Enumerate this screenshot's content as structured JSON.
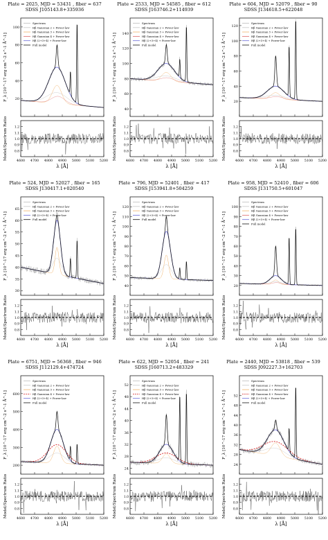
{
  "labels": {
    "xlabel": "λ [Å]",
    "ylabel_flux": "F_λ [10^-17 erg cm^-2 s^-1 Å^-1]",
    "ylabel_ratio": "Model/Spectrum Ratio"
  },
  "legend_sets": {
    "A": [
      "Spectrum",
      "Hβ Gaussian 2 + Power-law",
      "Hβ Gaussian 3 + Power-law",
      "Hβ Gaussian 4 + Power-law",
      "Hβ (2+3+4) + Power-law",
      "Full model"
    ],
    "B": [
      "Spectrum",
      "Hβ Gaussian 2 + Power-law",
      "Hβ Gaussian 3 + Power-law",
      "Hβ (2+3+4) + Power-law",
      "Full model"
    ],
    "C": [
      "Spectrum",
      "Hβ Gaussian 2 + Power-law",
      "Hβ Gaussian 3 + Power-law",
      "Hβ Gaussian 4 + Power-law",
      "Hβ (2+3+4) + Power-law",
      "Full model"
    ]
  },
  "colors": {
    "spectrum": "#bdbdbd",
    "model": "#111111",
    "gauss2": "#c8c8c8",
    "gauss3": "#f2b36b",
    "gauss4": "#e06a6a",
    "broad": "#6a6ad8",
    "red_dashed": "#d62020",
    "ratio_line": "#000000"
  },
  "chart_data": [
    {
      "type": "line",
      "title": "Plate = 2025, MJD = 53431 , fiber = 637",
      "subtitle": "SDSS J105143.8+335936",
      "legend": "A",
      "xlim": [
        4600,
        5200
      ],
      "xticks": [
        4600,
        4700,
        4800,
        4900,
        5000,
        5100,
        5200
      ],
      "ylim": [
        0,
        110
      ],
      "yticks": [
        20,
        40,
        60,
        80,
        100
      ],
      "peak": 80,
      "oiii": [
        105,
        40
      ],
      "cont": [
        18,
        10
      ],
      "broad": [
        55,
        60
      ],
      "rlim": [
        0.7,
        1.3
      ],
      "rticks": [
        0.8,
        0.9,
        1.0,
        1.1,
        1.2
      ]
    },
    {
      "type": "line",
      "title": "Plate = 2533, MJD = 54585 , fiber = 612",
      "subtitle": "SDSS J163746.2+114939",
      "legend": "A",
      "xlim": [
        4600,
        5200
      ],
      "xticks": [
        4600,
        4700,
        4800,
        4900,
        5000,
        5100,
        5200
      ],
      "ylim": [
        30,
        160
      ],
      "yticks": [
        40,
        60,
        80,
        100,
        120,
        140
      ],
      "peak": 125,
      "oiii": [
        150,
        100
      ],
      "cont": [
        80,
        72
      ],
      "broad": [
        100,
        60
      ],
      "rlim": [
        0.7,
        1.3
      ],
      "rticks": [
        0.8,
        0.9,
        1.0,
        1.1,
        1.2
      ]
    },
    {
      "type": "line",
      "title": "Plate = 604, MJD = 52079 , fiber = 90",
      "subtitle": "SDSS J134618.5+622048",
      "legend": "A",
      "xlim": [
        4600,
        5200
      ],
      "xticks": [
        4600,
        4700,
        4800,
        4900,
        5000,
        5100,
        5200
      ],
      "ylim": [
        0,
        130
      ],
      "yticks": [
        20,
        40,
        60,
        80,
        100,
        120
      ],
      "peak": 80,
      "oiii": [
        130,
        90
      ],
      "cont": [
        25,
        20
      ],
      "broad": [
        40,
        60
      ],
      "rlim": [
        0.7,
        1.3
      ],
      "rticks": [
        0.8,
        0.9,
        1.0,
        1.1,
        1.2
      ]
    },
    {
      "type": "line",
      "title": "Plate = 524, MJD = 52027 , fiber = 165",
      "subtitle": "SDSS J130417.1+020540",
      "legend": "B",
      "xlim": [
        4600,
        5200
      ],
      "xticks": [
        4600,
        4700,
        4800,
        4900,
        5000,
        5100,
        5200
      ],
      "ylim": [
        28,
        70
      ],
      "yticks": [
        30,
        35,
        40,
        45,
        50,
        55,
        60,
        65
      ],
      "peak": 62,
      "oiii": [
        52,
        44
      ],
      "cont": [
        40,
        33
      ],
      "broad": [
        60,
        25
      ],
      "rlim": [
        0.7,
        1.3
      ],
      "rticks": [
        0.8,
        0.9,
        1.0,
        1.1,
        1.2
      ]
    },
    {
      "type": "line",
      "title": "Plate = 796, MJD = 52401 , fiber = 417",
      "subtitle": "SDSS J153941.8+504259",
      "legend": "B",
      "xlim": [
        4600,
        5200
      ],
      "xticks": [
        4600,
        4700,
        4800,
        4900,
        5000,
        5100,
        5200
      ],
      "ylim": [
        30,
        130
      ],
      "yticks": [
        40,
        50,
        60,
        70,
        80,
        90,
        100,
        110,
        120
      ],
      "peak": 110,
      "oiii": [
        65,
        58
      ],
      "cont": [
        48,
        45
      ],
      "broad": [
        95,
        30
      ],
      "rlim": [
        0.7,
        1.3
      ],
      "rticks": [
        0.8,
        0.9,
        1.0,
        1.1,
        1.2
      ]
    },
    {
      "type": "line",
      "title": "Plate = 958, MJD = 52410 , fiber = 606",
      "subtitle": "SDSS J131750.5+601047",
      "legend": "A",
      "xlim": [
        4600,
        5200
      ],
      "xticks": [
        4600,
        4700,
        4800,
        4900,
        5000,
        5100,
        5200
      ],
      "ylim": [
        10,
        110
      ],
      "yticks": [
        20,
        30,
        40,
        50,
        60,
        70,
        80,
        90,
        100
      ],
      "peak": 60,
      "oiii": [
        80,
        70
      ],
      "cont": [
        22,
        20
      ],
      "broad": [
        30,
        40
      ],
      "rlim": [
        0.7,
        1.3
      ],
      "rticks": [
        0.8,
        0.9,
        1.0,
        1.1,
        1.2
      ]
    },
    {
      "type": "line",
      "title": "Plate = 6751, MJD = 56368 , fiber = 946",
      "subtitle": "SDSS J112129.4+474724",
      "legend": "C",
      "xlim": [
        4600,
        5200
      ],
      "xticks": [
        4600,
        4700,
        4800,
        4900,
        5000,
        5100,
        5200
      ],
      "ylim": [
        150,
        700
      ],
      "yticks": [
        200,
        300,
        400,
        500,
        600
      ],
      "peak": 500,
      "oiii": [
        320,
        290
      ],
      "cont": [
        220,
        200
      ],
      "broad": [
        400,
        45
      ],
      "rlim": [
        0.7,
        1.3
      ],
      "rticks": [
        0.8,
        0.9,
        1.0,
        1.1,
        1.2
      ]
    },
    {
      "type": "line",
      "title": "Plate = 622, MJD = 52054 , fiber = 241",
      "subtitle": "SDSS J160713.2+483329",
      "legend": "C",
      "xlim": [
        4600,
        5200
      ],
      "xticks": [
        4600,
        4700,
        4800,
        4900,
        5000,
        5100,
        5200
      ],
      "ylim": [
        22,
        55
      ],
      "yticks": [
        24,
        28,
        32,
        36,
        40,
        44,
        48,
        52
      ],
      "peak": 42,
      "oiii": [
        50,
        48
      ],
      "cont": [
        26,
        25
      ],
      "broad": [
        32,
        50
      ],
      "rlim": [
        0.7,
        1.3
      ],
      "rticks": [
        0.8,
        0.9,
        1.0,
        1.1,
        1.2
      ]
    },
    {
      "type": "line",
      "title": "Plate = 2440, MJD = 53818 , fiber = 539",
      "subtitle": "SDSS J092227.3+162703",
      "legend": "C",
      "xlim": [
        4600,
        5200
      ],
      "xticks": [
        4600,
        4700,
        4800,
        4900,
        5000,
        5100,
        5200
      ],
      "ylim": [
        20,
        60
      ],
      "yticks": [
        24,
        28,
        32,
        36,
        40,
        44,
        48,
        52
      ],
      "peak": 42,
      "oiii": [
        56,
        36
      ],
      "cont": [
        30,
        24
      ],
      "broad": [
        38,
        60
      ],
      "rlim": [
        0.7,
        1.3
      ],
      "rticks": [
        0.8,
        0.9,
        1.0,
        1.1,
        1.2
      ]
    }
  ]
}
